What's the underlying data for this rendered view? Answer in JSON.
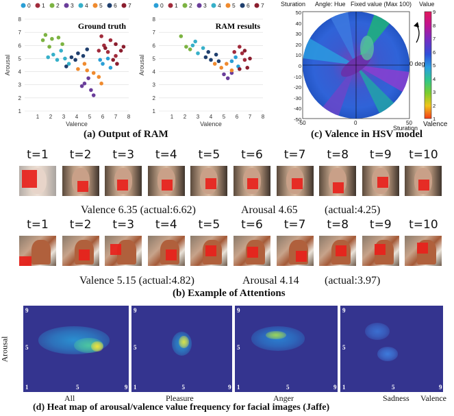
{
  "panel_a": {
    "legend": [
      "0",
      "1",
      "2",
      "3",
      "4",
      "5",
      "6",
      "7"
    ],
    "legend_colors": [
      "#2a9fd6",
      "#a12b3b",
      "#7cb342",
      "#6a3d9a",
      "#37b0c9",
      "#ef8a2e",
      "#1f3f6e",
      "#8b1e2e"
    ],
    "left_title": "Ground truth",
    "right_title": "RAM results",
    "xlabel": "Valence",
    "ylabel": "Arousal",
    "caption": "(a) Output of RAM"
  },
  "panel_c": {
    "header_left": "Sturation",
    "header_mid": "Angle: Hue",
    "header_right": "Fixed value (Max 100)",
    "header_value": "Value",
    "zero_label": "0 deg",
    "bottom_label": "Sturation",
    "colorbar_label": "Valence",
    "caption": "(c) Valence in HSV model",
    "yticks": [
      "50",
      "40",
      "30",
      "20",
      "10",
      "0",
      "-10",
      "-20",
      "-30",
      "-40",
      "-50"
    ],
    "xticks": [
      "-50",
      "0",
      "50"
    ],
    "cbticks": [
      "9",
      "8",
      "7",
      "6",
      "5",
      "4",
      "3",
      "2",
      "1"
    ]
  },
  "panel_b": {
    "tlabels": [
      "t=1",
      "t=2",
      "t=3",
      "t=4",
      "t=5",
      "t=6",
      "t=7",
      "t=8",
      "t=9",
      "t=10"
    ],
    "row1_valence": "Valence 6.35 (actual:6.62)",
    "row1_arousal": "Arousal 4.65",
    "row1_actual": "(actual:4.25)",
    "row2_valence": "Valence 5.15 (actual:4.82)",
    "row2_arousal": "Arousal 4.14",
    "row2_actual": "(actual:3.97)",
    "caption": "(b) Example of Attentions"
  },
  "panel_d": {
    "ylabel": "Arousal",
    "labels": [
      "All",
      "Pleasure",
      "Anger",
      "Sadness"
    ],
    "xlabel": "Valence",
    "tick_9": "9",
    "tick_5": "5",
    "tick_1": "1",
    "caption": "(d) Heat map of arousal/valence value frequency for facial images (Jaffe)"
  },
  "chart_data": [
    {
      "type": "scatter",
      "title": "Ground truth",
      "xlabel": "Valence",
      "ylabel": "Arousal",
      "xlim": [
        0,
        8
      ],
      "ylim": [
        1,
        8
      ],
      "series": [
        {
          "name": "0",
          "points": [
            [
              6.0,
              4.6
            ],
            [
              6.4,
              5.0
            ],
            [
              5.8,
              4.9
            ],
            [
              6.6,
              4.3
            ]
          ]
        },
        {
          "name": "1",
          "points": [
            [
              5.7,
              5.6
            ],
            [
              6.1,
              6.0
            ],
            [
              6.6,
              6.4
            ],
            [
              7.0,
              5.2
            ],
            [
              5.9,
              6.7
            ],
            [
              6.4,
              5.5
            ]
          ]
        },
        {
          "name": "2",
          "points": [
            [
              1.6,
              6.8
            ],
            [
              2.1,
              6.5
            ],
            [
              1.4,
              6.4
            ],
            [
              2.6,
              6.6
            ],
            [
              2.9,
              6.1
            ],
            [
              1.9,
              5.9
            ]
          ]
        },
        {
          "name": "3",
          "points": [
            [
              4.6,
              3.1
            ],
            [
              5.1,
              2.6
            ],
            [
              4.4,
              2.9
            ],
            [
              5.3,
              2.2
            ],
            [
              4.9,
              3.5
            ]
          ]
        },
        {
          "name": "4",
          "points": [
            [
              2.2,
              5.3
            ],
            [
              2.5,
              4.9
            ],
            [
              2.8,
              5.6
            ],
            [
              3.1,
              5.0
            ],
            [
              1.8,
              5.1
            ],
            [
              3.4,
              4.6
            ]
          ]
        },
        {
          "name": "5",
          "points": [
            [
              4.1,
              4.2
            ],
            [
              4.6,
              4.6
            ],
            [
              5.3,
              3.9
            ],
            [
              4.8,
              4.1
            ],
            [
              5.7,
              3.6
            ],
            [
              5.9,
              3.1
            ]
          ]
        },
        {
          "name": "6",
          "points": [
            [
              3.6,
              5.1
            ],
            [
              3.2,
              4.4
            ],
            [
              4.1,
              5.4
            ],
            [
              4.5,
              5.2
            ],
            [
              3.9,
              4.9
            ],
            [
              4.8,
              5.7
            ]
          ]
        },
        {
          "name": "7",
          "points": [
            [
              6.8,
              4.9
            ],
            [
              7.4,
              5.6
            ],
            [
              7.1,
              4.6
            ],
            [
              7.6,
              5.9
            ],
            [
              6.2,
              5.8
            ],
            [
              7.0,
              6.1
            ]
          ]
        }
      ]
    },
    {
      "type": "scatter",
      "title": "RAM results",
      "xlabel": "Valence",
      "ylabel": "Arousal",
      "xlim": [
        0,
        8
      ],
      "ylim": [
        1,
        8
      ],
      "series": [
        {
          "name": "0",
          "points": [
            [
              5.6,
              4.8
            ],
            [
              6.1,
              4.4
            ],
            [
              5.9,
              5.1
            ]
          ]
        },
        {
          "name": "1",
          "points": [
            [
              5.8,
              5.5
            ],
            [
              6.2,
              5.9
            ],
            [
              6.6,
              4.9
            ],
            [
              6.4,
              5.4
            ]
          ]
        },
        {
          "name": "2",
          "points": [
            [
              1.7,
              6.7
            ],
            [
              2.4,
              5.7
            ],
            [
              2.1,
              5.9
            ]
          ]
        },
        {
          "name": "3",
          "points": [
            [
              5.0,
              3.8
            ],
            [
              5.3,
              3.5
            ],
            [
              5.6,
              3.9
            ]
          ]
        },
        {
          "name": "4",
          "points": [
            [
              2.6,
              6.0
            ],
            [
              3.0,
              5.4
            ],
            [
              3.4,
              5.8
            ],
            [
              2.8,
              6.3
            ]
          ]
        },
        {
          "name": "5",
          "points": [
            [
              4.3,
              4.6
            ],
            [
              4.8,
              4.3
            ],
            [
              5.2,
              4.6
            ],
            [
              5.6,
              4.1
            ]
          ]
        },
        {
          "name": "6",
          "points": [
            [
              3.6,
              5.1
            ],
            [
              4.0,
              4.9
            ],
            [
              4.4,
              5.3
            ],
            [
              3.8,
              5.5
            ],
            [
              4.6,
              4.8
            ]
          ]
        },
        {
          "name": "7",
          "points": [
            [
              6.6,
              5.6
            ],
            [
              6.8,
              4.3
            ],
            [
              6.2,
              4.2
            ],
            [
              7.0,
              5.0
            ]
          ]
        }
      ]
    }
  ]
}
